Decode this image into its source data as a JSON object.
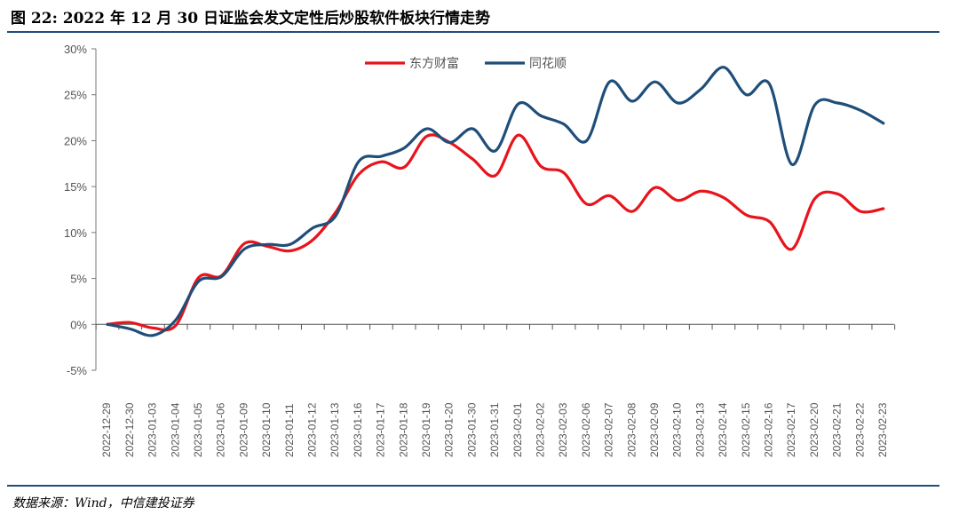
{
  "figure": {
    "title": "图 22: 2022 年 12 月 30 日证监会发文定性后炒股软件板块行情走势",
    "source": "数据来源：Wind，中信建投证券"
  },
  "chart_data": {
    "type": "line",
    "categories": [
      "2022-12-29",
      "2022-12-30",
      "2023-01-03",
      "2023-01-04",
      "2023-01-05",
      "2023-01-06",
      "2023-01-09",
      "2023-01-10",
      "2023-01-11",
      "2023-01-12",
      "2023-01-13",
      "2023-01-16",
      "2023-01-17",
      "2023-01-18",
      "2023-01-19",
      "2023-01-20",
      "2023-01-30",
      "2023-01-31",
      "2023-02-01",
      "2023-02-02",
      "2023-02-03",
      "2023-02-06",
      "2023-02-07",
      "2023-02-08",
      "2023-02-09",
      "2023-02-10",
      "2023-02-13",
      "2023-02-14",
      "2023-02-15",
      "2023-02-16",
      "2023-02-17",
      "2023-02-20",
      "2023-02-21",
      "2023-02-22",
      "2023-02-23"
    ],
    "series": [
      {
        "name": "东方财富",
        "color": "#e8141c",
        "values": [
          0.0,
          0.2,
          -0.4,
          -0.1,
          5.1,
          5.3,
          8.8,
          8.5,
          8.0,
          9.2,
          12.2,
          16.3,
          17.7,
          17.1,
          20.5,
          19.8,
          18.0,
          16.2,
          20.6,
          17.2,
          16.5,
          13.1,
          14.0,
          12.3,
          14.9,
          13.5,
          14.5,
          13.8,
          11.9,
          11.2,
          8.2,
          13.7,
          14.2,
          12.3,
          12.6
        ]
      },
      {
        "name": "同花顺",
        "color": "#1f4e79",
        "values": [
          0.0,
          -0.5,
          -1.2,
          0.5,
          4.7,
          5.2,
          8.2,
          8.7,
          8.7,
          10.5,
          11.8,
          17.7,
          18.3,
          19.2,
          21.3,
          19.8,
          21.3,
          18.9,
          24.0,
          22.7,
          21.8,
          20.0,
          26.4,
          24.3,
          26.4,
          24.1,
          25.6,
          28.0,
          25.0,
          26.2,
          17.4,
          23.9,
          24.1,
          23.3,
          21.9
        ]
      }
    ],
    "y_ticks": [
      "30%",
      "25%",
      "20%",
      "15%",
      "10%",
      "5%",
      "0%",
      "-5%"
    ],
    "ylim": [
      -5,
      30
    ],
    "legend_position": "top-center",
    "grid": false
  }
}
